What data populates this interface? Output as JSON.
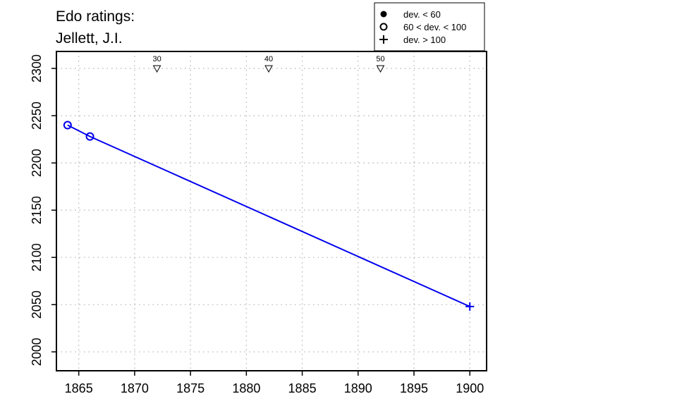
{
  "title": {
    "line1": "Edo ratings:",
    "line2": "Jellett, J.I."
  },
  "colors": {
    "series": "#0000ee",
    "axis": "#000000",
    "grid": "#b0b0b0"
  },
  "legend": {
    "placement": "top-right",
    "entries": [
      {
        "symbol": "filled-circle",
        "label": "dev. < 60"
      },
      {
        "symbol": "open-circle",
        "label": "60 < dev. < 100"
      },
      {
        "symbol": "plus",
        "label": "dev. > 100"
      }
    ]
  },
  "chart_data": {
    "type": "line",
    "title": "Edo ratings: Jellett, J.I.",
    "xlabel": "",
    "ylabel": "",
    "xlim": [
      1863,
      1901.5
    ],
    "ylim": [
      1980,
      2318
    ],
    "grid": true,
    "x_ticks": [
      1865,
      1870,
      1875,
      1880,
      1885,
      1890,
      1895,
      1900
    ],
    "y_ticks": [
      2000,
      2050,
      2100,
      2150,
      2200,
      2250,
      2300
    ],
    "series": [
      {
        "points": [
          {
            "x": 1864,
            "y": 2240,
            "marker": "open-circle"
          },
          {
            "x": 1866,
            "y": 2228,
            "marker": "open-circle"
          },
          {
            "x": 1900,
            "y": 2048,
            "marker": "plus"
          }
        ]
      }
    ],
    "age_markers": [
      {
        "x": 1872,
        "label": "30"
      },
      {
        "x": 1882,
        "label": "40"
      },
      {
        "x": 1892,
        "label": "50"
      }
    ]
  }
}
